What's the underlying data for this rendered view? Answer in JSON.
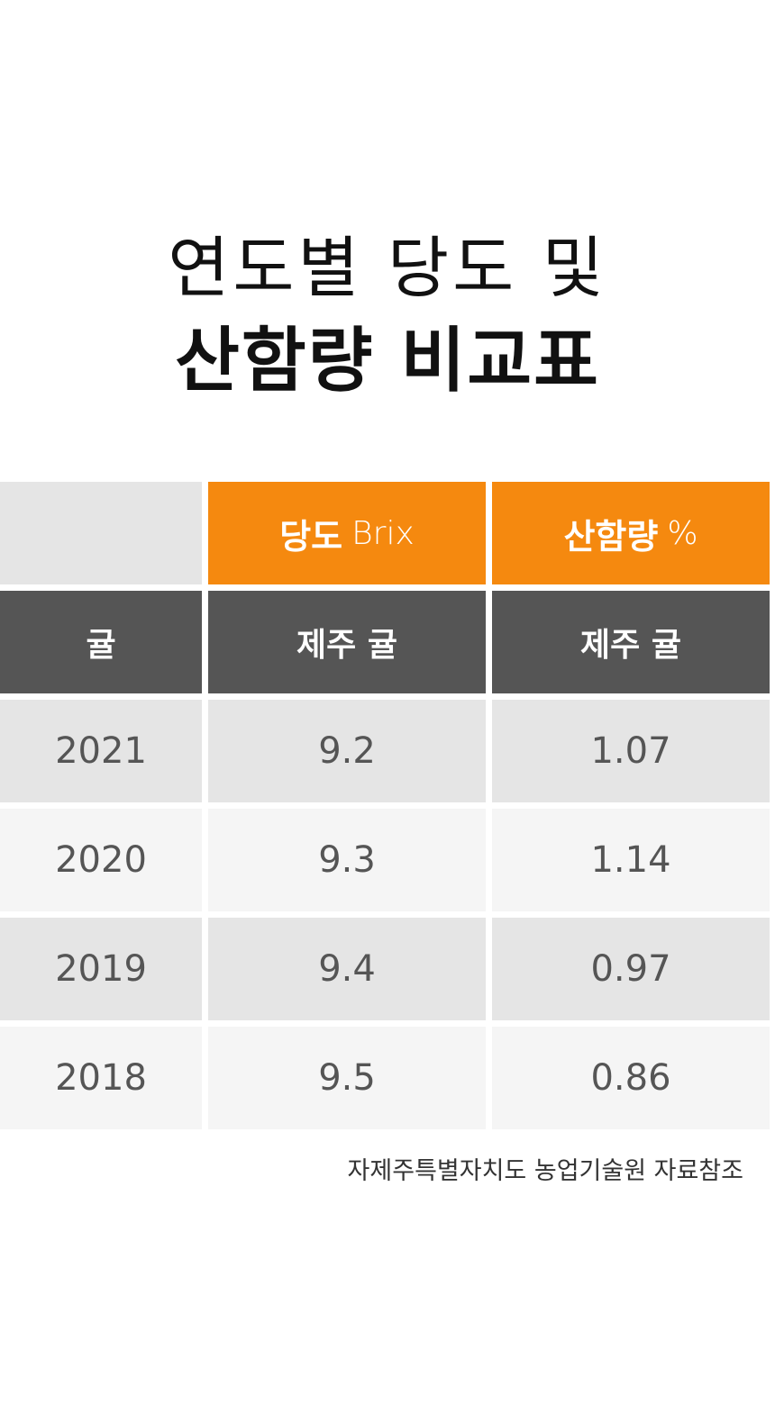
{
  "header": {
    "title": [
      "연도별 당도 및",
      "산함량 비교표"
    ]
  },
  "table": {
    "columns": [
      {
        "label": "당도",
        "unit": "Brix"
      },
      {
        "label": "산함량",
        "unit": "%"
      }
    ],
    "subheader": [
      "귤",
      "제주 귤",
      "제주 귤"
    ],
    "rows": [
      [
        2021,
        9.2,
        1.07
      ],
      [
        2020,
        9.3,
        1.14
      ],
      [
        2019,
        9.4,
        0.97
      ],
      [
        2018,
        9.5,
        0.86
      ]
    ]
  },
  "footer": {
    "source": "자제주특별자치도 농업기술원 자료참조"
  }
}
